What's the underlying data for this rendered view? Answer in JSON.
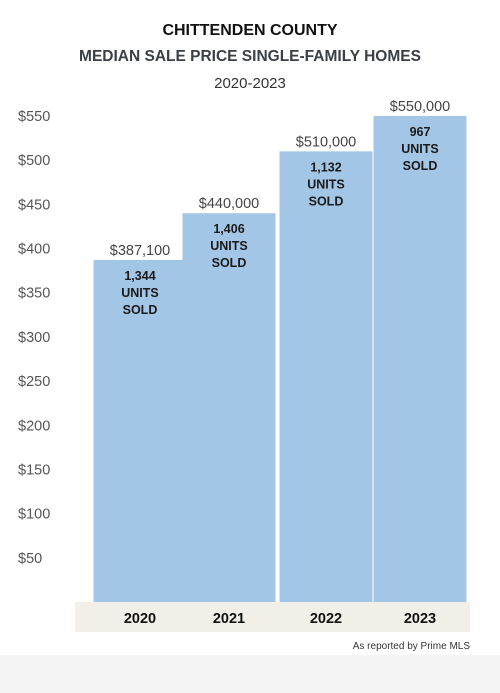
{
  "header": {
    "title": "CHITTENDEN COUNTY",
    "subtitle": "MEDIAN SALE PRICE SINGLE-FAMILY HOMES",
    "years": "2020-2023"
  },
  "footer": {
    "source": "As reported by Prime MLS"
  },
  "colors": {
    "bar": "#a4c6e6",
    "baseline_band": "#f1efe8",
    "axis_text": "#555555",
    "bar_text": "#1a1a1a"
  },
  "chart_data": {
    "type": "bar",
    "title": "CHITTENDEN COUNTY",
    "subtitle": "MEDIAN SALE PRICE SINGLE-FAMILY HOMES",
    "xlabel": "",
    "ylabel": "",
    "categories": [
      "2020",
      "2021",
      "2022",
      "2023"
    ],
    "values": [
      387100,
      440000,
      510000,
      550000
    ],
    "value_labels": [
      "$387,100",
      "$440,000",
      "$510,000",
      "$550,000"
    ],
    "units_sold": [
      [
        "1,344",
        "UNITS",
        "SOLD"
      ],
      [
        "1,406",
        "UNITS",
        "SOLD"
      ],
      [
        "1,132",
        "UNITS",
        "SOLD"
      ],
      [
        "967",
        "UNITS",
        "SOLD"
      ]
    ],
    "yticks": [
      50,
      100,
      150,
      200,
      250,
      300,
      350,
      400,
      450,
      500,
      550
    ],
    "ytick_labels": [
      "$50",
      "$100",
      "$150",
      "$200",
      "$250",
      "$300",
      "$350",
      "$400",
      "$450",
      "$500",
      "$550"
    ],
    "ylim": [
      0,
      550000
    ],
    "grid": false,
    "legend": "none"
  }
}
